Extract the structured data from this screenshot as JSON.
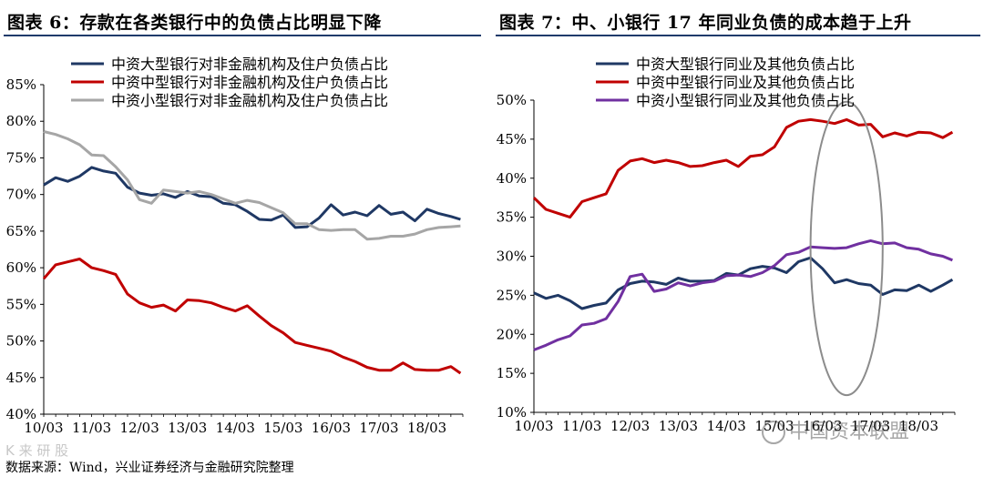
{
  "footer": {
    "source": "数据来源：Wind，兴业证券经济与金融研究院整理"
  },
  "watermarks": {
    "left": "K 来 研 股",
    "right": "中国资本联盟"
  },
  "chart_data": [
    {
      "type": "line",
      "title": "图表 6：存款在各类银行中的负债占比明显下降",
      "xlabel": "",
      "ylabel": "",
      "ylim": [
        40,
        85
      ],
      "yticks": [
        40,
        45,
        50,
        55,
        60,
        65,
        70,
        75,
        80,
        85
      ],
      "ytick_labels": [
        "40%",
        "45%",
        "50%",
        "55%",
        "60%",
        "65%",
        "70%",
        "75%",
        "80%",
        "85%"
      ],
      "xlim": [
        2010.25,
        2019.0
      ],
      "xticks": [
        2010.25,
        2011.25,
        2012.25,
        2013.25,
        2014.25,
        2015.25,
        2016.25,
        2017.25,
        2018.25
      ],
      "xtick_labels": [
        "10/03",
        "11/03",
        "12/03",
        "13/03",
        "14/03",
        "15/03",
        "16/03",
        "17/03",
        "18/03"
      ],
      "legend_position": "top",
      "series": [
        {
          "name": "中资大型银行对非金融机构及住户负债占比",
          "color": "#1f3864",
          "x": [
            2010.25,
            2010.5,
            2010.75,
            2011.0,
            2011.25,
            2011.5,
            2011.75,
            2012.0,
            2012.25,
            2012.5,
            2012.75,
            2013.0,
            2013.25,
            2013.5,
            2013.75,
            2014.0,
            2014.25,
            2014.5,
            2014.75,
            2015.0,
            2015.25,
            2015.5,
            2015.75,
            2016.0,
            2016.25,
            2016.5,
            2016.75,
            2017.0,
            2017.25,
            2017.5,
            2017.75,
            2018.0,
            2018.25,
            2018.5,
            2018.75,
            2018.95
          ],
          "values": [
            71.3,
            72.3,
            71.8,
            72.5,
            73.7,
            73.2,
            72.9,
            71.0,
            70.2,
            69.9,
            70.1,
            69.6,
            70.4,
            69.8,
            69.7,
            68.8,
            68.6,
            67.7,
            66.6,
            66.5,
            67.2,
            65.5,
            65.6,
            66.8,
            68.6,
            67.2,
            67.6,
            67.1,
            68.5,
            67.3,
            67.6,
            66.4,
            68.0,
            67.4,
            67.0,
            66.6
          ]
        },
        {
          "name": "中资中型银行对非金融机构及住户负债占比",
          "color": "#c00000",
          "x": [
            2010.25,
            2010.5,
            2010.75,
            2011.0,
            2011.25,
            2011.5,
            2011.75,
            2012.0,
            2012.25,
            2012.5,
            2012.75,
            2013.0,
            2013.25,
            2013.5,
            2013.75,
            2014.0,
            2014.25,
            2014.5,
            2014.75,
            2015.0,
            2015.25,
            2015.5,
            2015.75,
            2016.0,
            2016.25,
            2016.5,
            2016.75,
            2017.0,
            2017.25,
            2017.5,
            2017.75,
            2018.0,
            2018.25,
            2018.5,
            2018.75,
            2018.95
          ],
          "values": [
            58.5,
            60.4,
            60.8,
            61.2,
            60.0,
            59.6,
            59.1,
            56.4,
            55.2,
            54.6,
            54.9,
            54.1,
            55.6,
            55.5,
            55.2,
            54.6,
            54.1,
            54.8,
            53.4,
            52.1,
            51.1,
            49.8,
            49.4,
            49.0,
            48.6,
            47.8,
            47.2,
            46.4,
            46.0,
            46.0,
            47.0,
            46.1,
            46.0,
            46.0,
            46.5,
            45.6
          ]
        },
        {
          "name": "中资小型银行对非金融机构及住户负债占比",
          "color": "#a6a6a6",
          "x": [
            2010.25,
            2010.5,
            2010.75,
            2011.0,
            2011.25,
            2011.5,
            2011.75,
            2012.0,
            2012.25,
            2012.5,
            2012.75,
            2013.0,
            2013.25,
            2013.5,
            2013.75,
            2014.0,
            2014.25,
            2014.5,
            2014.75,
            2015.0,
            2015.25,
            2015.5,
            2015.75,
            2016.0,
            2016.25,
            2016.5,
            2016.75,
            2017.0,
            2017.25,
            2017.5,
            2017.75,
            2018.0,
            2018.25,
            2018.5,
            2018.75,
            2018.95
          ],
          "values": [
            78.6,
            78.2,
            77.6,
            76.8,
            75.4,
            75.3,
            73.8,
            72.0,
            69.3,
            68.8,
            70.6,
            70.4,
            70.2,
            70.4,
            70.0,
            69.4,
            68.8,
            69.2,
            68.9,
            68.2,
            67.5,
            66.0,
            66.0,
            65.2,
            65.1,
            65.2,
            65.2,
            63.9,
            64.0,
            64.3,
            64.3,
            64.6,
            65.2,
            65.5,
            65.6,
            65.7
          ]
        }
      ]
    },
    {
      "type": "line",
      "title": "图表 7：中、小银行 17 年同业负债的成本趋于上升",
      "xlabel": "",
      "ylabel": "",
      "ylim": [
        10,
        50
      ],
      "yticks": [
        10,
        15,
        20,
        25,
        30,
        35,
        40,
        45,
        50
      ],
      "ytick_labels": [
        "10%",
        "15%",
        "20%",
        "25%",
        "30%",
        "35%",
        "40%",
        "45%",
        "50%"
      ],
      "xlim": [
        2010.25,
        2019.0
      ],
      "xticks": [
        2010.25,
        2011.25,
        2012.25,
        2013.25,
        2014.25,
        2015.25,
        2016.25,
        2017.25,
        2018.25
      ],
      "xtick_labels": [
        "10/03",
        "11/03",
        "12/03",
        "13/03",
        "14/03",
        "15/03",
        "16/03",
        "17/03",
        "18/03"
      ],
      "legend_position": "top",
      "annotation_label": "圈出：2017年前后",
      "annotation": {
        "shape": "ellipse",
        "x_center": 2016.75,
        "y_center": 31,
        "x_radius": 0.75,
        "y_radius": 18.8
      },
      "series": [
        {
          "name": "中资大型银行同业及其他负债占比",
          "color": "#1f3864",
          "x": [
            2010.25,
            2010.5,
            2010.75,
            2011.0,
            2011.25,
            2011.5,
            2011.75,
            2012.0,
            2012.25,
            2012.5,
            2012.75,
            2013.0,
            2013.25,
            2013.5,
            2013.75,
            2014.0,
            2014.25,
            2014.5,
            2014.75,
            2015.0,
            2015.25,
            2015.5,
            2015.75,
            2016.0,
            2016.25,
            2016.5,
            2016.75,
            2017.0,
            2017.25,
            2017.5,
            2017.75,
            2018.0,
            2018.25,
            2018.5,
            2018.75,
            2018.95
          ],
          "values": [
            25.3,
            24.6,
            25.0,
            24.3,
            23.3,
            23.7,
            24.0,
            25.7,
            26.5,
            26.8,
            26.7,
            26.4,
            27.2,
            26.8,
            26.8,
            26.9,
            27.8,
            27.6,
            28.4,
            28.7,
            28.5,
            27.9,
            29.3,
            29.8,
            28.4,
            26.6,
            27.0,
            26.5,
            26.3,
            25.1,
            25.7,
            25.6,
            26.3,
            25.5,
            26.3,
            27.0
          ]
        },
        {
          "name": "中资中型银行同业及其他负债占比",
          "color": "#c00000",
          "x": [
            2010.25,
            2010.5,
            2010.75,
            2011.0,
            2011.25,
            2011.5,
            2011.75,
            2012.0,
            2012.25,
            2012.5,
            2012.75,
            2013.0,
            2013.25,
            2013.5,
            2013.75,
            2014.0,
            2014.25,
            2014.5,
            2014.75,
            2015.0,
            2015.25,
            2015.5,
            2015.75,
            2016.0,
            2016.25,
            2016.5,
            2016.75,
            2017.0,
            2017.25,
            2017.5,
            2017.75,
            2018.0,
            2018.25,
            2018.5,
            2018.75,
            2018.95
          ],
          "values": [
            37.5,
            36.0,
            35.5,
            35.0,
            37.0,
            37.5,
            38.0,
            41.0,
            42.2,
            42.5,
            42.0,
            42.3,
            42.0,
            41.5,
            41.6,
            42.0,
            42.3,
            41.5,
            42.8,
            43.0,
            44.0,
            46.5,
            47.3,
            47.5,
            47.3,
            47.0,
            47.5,
            46.8,
            46.9,
            45.3,
            45.8,
            45.4,
            45.9,
            45.8,
            45.2,
            45.9
          ]
        },
        {
          "name": "中资小型银行同业及其他负债占比",
          "color": "#7030a0",
          "x": [
            2010.25,
            2010.5,
            2010.75,
            2011.0,
            2011.25,
            2011.5,
            2011.75,
            2012.0,
            2012.25,
            2012.5,
            2012.75,
            2013.0,
            2013.25,
            2013.5,
            2013.75,
            2014.0,
            2014.25,
            2014.5,
            2014.75,
            2015.0,
            2015.25,
            2015.5,
            2015.75,
            2016.0,
            2016.25,
            2016.5,
            2016.75,
            2017.0,
            2017.25,
            2017.5,
            2017.75,
            2018.0,
            2018.25,
            2018.5,
            2018.75,
            2018.95
          ],
          "values": [
            18.0,
            18.6,
            19.3,
            19.8,
            21.2,
            21.4,
            22.0,
            24.2,
            27.4,
            27.7,
            25.5,
            25.8,
            26.6,
            26.2,
            26.6,
            26.8,
            27.5,
            27.6,
            27.4,
            27.9,
            28.8,
            30.2,
            30.5,
            31.2,
            31.1,
            31.0,
            31.1,
            31.6,
            32.0,
            31.6,
            31.7,
            31.1,
            30.9,
            30.3,
            30.0,
            29.5
          ]
        }
      ]
    }
  ]
}
